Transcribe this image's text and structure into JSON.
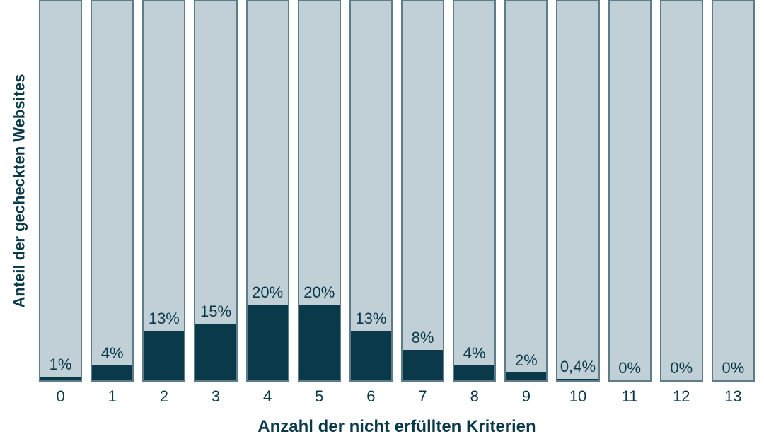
{
  "chart": {
    "type": "bar",
    "ylabel": "Anteil der gecheckten Websites",
    "xlabel": "Anzahl der nicht erfüllten Kriterien",
    "ylim_max": 100,
    "bar_bg_color": "#c1cfd6",
    "bar_fill_color": "#0a3a4a",
    "bar_border_color": "#5d7d8a",
    "text_color": "#0a3a4a",
    "background_color": "#ffffff",
    "label_fontsize": 22,
    "axis_label_fontsize": 24,
    "axis_label_fontweight": 700,
    "bars": [
      {
        "category": "0",
        "value": 1,
        "label": "1%"
      },
      {
        "category": "1",
        "value": 4,
        "label": "4%"
      },
      {
        "category": "2",
        "value": 13,
        "label": "13%"
      },
      {
        "category": "3",
        "value": 15,
        "label": "15%"
      },
      {
        "category": "4",
        "value": 20,
        "label": "20%"
      },
      {
        "category": "5",
        "value": 20,
        "label": "20%"
      },
      {
        "category": "6",
        "value": 13,
        "label": "13%"
      },
      {
        "category": "7",
        "value": 8,
        "label": "8%"
      },
      {
        "category": "8",
        "value": 4,
        "label": "4%"
      },
      {
        "category": "9",
        "value": 2,
        "label": "2%"
      },
      {
        "category": "10",
        "value": 0.4,
        "label": "0,4%"
      },
      {
        "category": "11",
        "value": 0,
        "label": "0%"
      },
      {
        "category": "12",
        "value": 0,
        "label": "0%"
      },
      {
        "category": "13",
        "value": 0,
        "label": "0%"
      }
    ]
  }
}
